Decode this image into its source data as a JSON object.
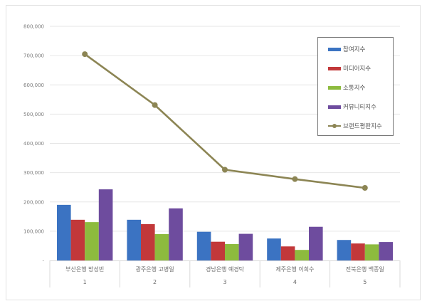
{
  "chart_data": {
    "type": "bar",
    "title": "",
    "xlabel": "",
    "ylabel": "",
    "ylim": [
      0,
      800000
    ],
    "yticks": [
      "-",
      "100,000",
      "200,000",
      "300,000",
      "400,000",
      "500,000",
      "600,000",
      "700,000",
      "800,000"
    ],
    "categories": [
      "부산은행 방성빈",
      "광주은행 고병일",
      "경남은행 예경탁",
      "제주은행 이희수",
      "전북은행 백종일"
    ],
    "category_ranks": [
      "1",
      "2",
      "3",
      "4",
      "5"
    ],
    "grid": true,
    "legend_position": "upper right",
    "series": [
      {
        "name": "참여지수",
        "type": "bar",
        "color": "#3b73c2",
        "values": [
          190000,
          139000,
          98000,
          75000,
          70000
        ]
      },
      {
        "name": "미디어지수",
        "type": "bar",
        "color": "#c2383a",
        "values": [
          139000,
          124000,
          64000,
          48000,
          58000
        ]
      },
      {
        "name": "소통지수",
        "type": "bar",
        "color": "#8dbb3e",
        "values": [
          131000,
          90000,
          56000,
          36000,
          55000
        ]
      },
      {
        "name": "커뮤니티지수",
        "type": "bar",
        "color": "#6e4c9e",
        "values": [
          243000,
          178000,
          91000,
          115000,
          63000
        ]
      },
      {
        "name": "브랜드평판지수",
        "type": "line",
        "color": "#8c8554",
        "values": [
          705000,
          531000,
          310000,
          278000,
          248000
        ]
      }
    ]
  }
}
